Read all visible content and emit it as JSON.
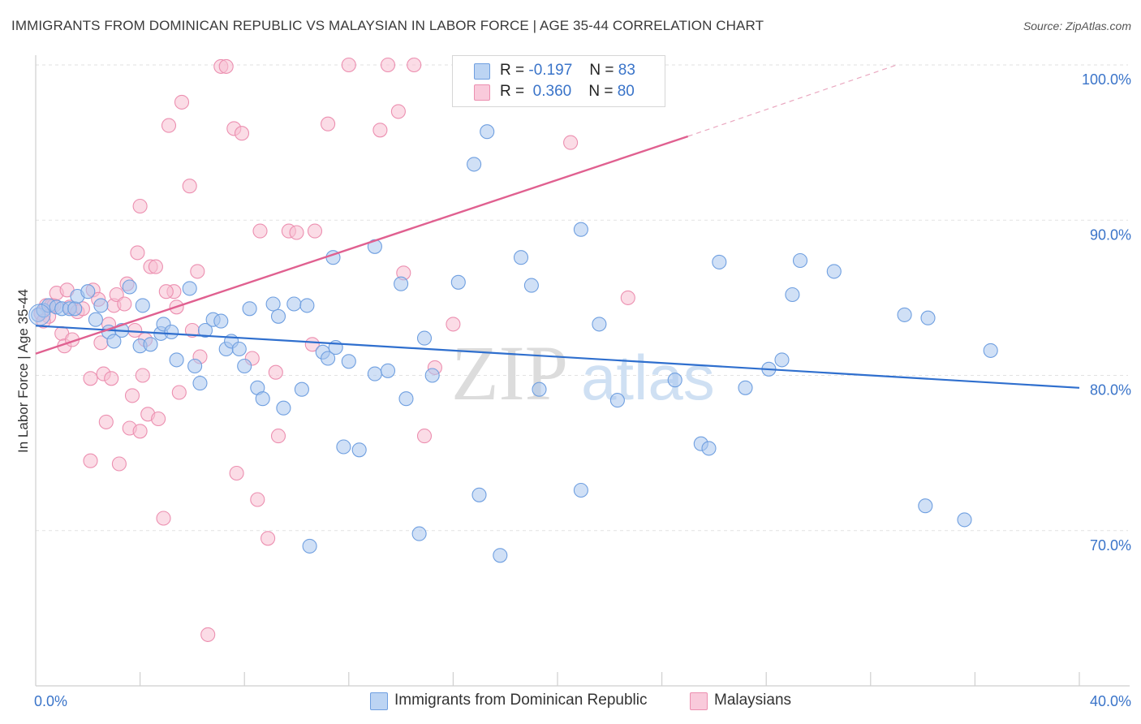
{
  "title": "IMMIGRANTS FROM DOMINICAN REPUBLIC VS MALAYSIAN IN LABOR FORCE | AGE 35-44 CORRELATION CHART",
  "source": "Source: ZipAtlas.com",
  "watermark": {
    "zip": "ZIP",
    "atlas": "atlas"
  },
  "colors": {
    "blue_fill": "#a9c7ef",
    "blue_stroke": "#6f9fe0",
    "blue_line": "#2f6fce",
    "pink_fill": "#f7bfd2",
    "pink_stroke": "#ec8fb0",
    "pink_line": "#e06090",
    "axis_label": "#3a74c9",
    "grid": "#e2e2e2"
  },
  "legend_top": [
    {
      "r_label": "R =",
      "r": "-0.197",
      "n_label": "N =",
      "n": "83",
      "color": "blue"
    },
    {
      "r_label": "R =",
      "r": "0.360",
      "n_label": "N =",
      "n": "80",
      "color": "pink"
    }
  ],
  "legend_bottom": [
    {
      "label": "Immigrants from Dominican Republic",
      "color": "blue"
    },
    {
      "label": "Malaysians",
      "color": "pink"
    }
  ],
  "chart_data": {
    "type": "scatter",
    "title": "IMMIGRANTS FROM DOMINICAN REPUBLIC VS MALAYSIAN IN LABOR FORCE | AGE 35-44 CORRELATION CHART",
    "xlabel": "",
    "ylabel": "In Labor Force | Age 35-44",
    "xlim": [
      0,
      40
    ],
    "ylim": [
      60,
      100
    ],
    "x_tick_labels": [
      {
        "value": 0,
        "label": "0.0%"
      },
      {
        "value": 40,
        "label": "40.0%"
      }
    ],
    "y_tick_labels": [
      {
        "value": 100,
        "label": "100.0%"
      },
      {
        "value": 90,
        "label": "90.0%"
      },
      {
        "value": 80,
        "label": "80.0%"
      },
      {
        "value": 70,
        "label": "70.0%"
      }
    ],
    "x_minor_ticks": [
      4,
      8,
      12,
      16,
      20,
      24,
      28,
      32,
      36,
      40
    ],
    "grid": true,
    "series": [
      {
        "name": "Immigrants from Dominican Republic",
        "color": "blue",
        "trend": {
          "x0": 0,
          "y0": 83.2,
          "x1": 40,
          "y1": 79.2
        },
        "points": [
          [
            0.1,
            83.9
          ],
          [
            0.3,
            84.2
          ],
          [
            0.5,
            84.5
          ],
          [
            0.8,
            84.4
          ],
          [
            1.0,
            84.3
          ],
          [
            1.3,
            84.3
          ],
          [
            1.5,
            84.3
          ],
          [
            1.6,
            85.1
          ],
          [
            2.0,
            85.4
          ],
          [
            2.3,
            83.6
          ],
          [
            2.5,
            84.5
          ],
          [
            2.8,
            82.8
          ],
          [
            3.0,
            82.2
          ],
          [
            3.3,
            82.9
          ],
          [
            3.6,
            85.7
          ],
          [
            4.0,
            81.9
          ],
          [
            4.1,
            84.5
          ],
          [
            4.4,
            82.0
          ],
          [
            4.8,
            82.7
          ],
          [
            4.9,
            83.3
          ],
          [
            5.2,
            82.8
          ],
          [
            5.4,
            81.0
          ],
          [
            5.9,
            85.6
          ],
          [
            6.1,
            80.6
          ],
          [
            6.3,
            79.5
          ],
          [
            6.5,
            82.9
          ],
          [
            6.8,
            83.6
          ],
          [
            7.1,
            83.5
          ],
          [
            7.3,
            81.7
          ],
          [
            7.5,
            82.2
          ],
          [
            7.8,
            81.7
          ],
          [
            8.0,
            80.6
          ],
          [
            8.2,
            84.3
          ],
          [
            8.5,
            79.2
          ],
          [
            8.7,
            78.5
          ],
          [
            9.1,
            84.6
          ],
          [
            9.3,
            83.8
          ],
          [
            9.5,
            77.9
          ],
          [
            9.9,
            84.6
          ],
          [
            10.2,
            79.1
          ],
          [
            10.4,
            84.5
          ],
          [
            10.5,
            69.0
          ],
          [
            11.0,
            81.5
          ],
          [
            11.2,
            81.1
          ],
          [
            11.4,
            87.6
          ],
          [
            11.5,
            81.8
          ],
          [
            11.8,
            75.4
          ],
          [
            12.0,
            80.9
          ],
          [
            12.4,
            75.2
          ],
          [
            13.0,
            88.3
          ],
          [
            13.0,
            80.1
          ],
          [
            13.5,
            80.3
          ],
          [
            14.0,
            85.9
          ],
          [
            14.2,
            78.5
          ],
          [
            14.7,
            69.8
          ],
          [
            14.9,
            82.4
          ],
          [
            15.2,
            80.0
          ],
          [
            16.2,
            86.0
          ],
          [
            16.8,
            93.6
          ],
          [
            17.0,
            72.3
          ],
          [
            17.3,
            95.7
          ],
          [
            17.8,
            68.4
          ],
          [
            18.6,
            87.6
          ],
          [
            19.0,
            85.8
          ],
          [
            19.3,
            79.1
          ],
          [
            20.9,
            72.6
          ],
          [
            20.9,
            89.4
          ],
          [
            21.6,
            83.3
          ],
          [
            22.3,
            78.4
          ],
          [
            24.5,
            79.7
          ],
          [
            25.5,
            75.6
          ],
          [
            25.8,
            75.3
          ],
          [
            26.2,
            87.3
          ],
          [
            27.2,
            79.2
          ],
          [
            28.1,
            80.4
          ],
          [
            28.6,
            81.0
          ],
          [
            29.0,
            85.2
          ],
          [
            29.3,
            87.4
          ],
          [
            30.6,
            86.7
          ],
          [
            33.3,
            83.9
          ],
          [
            34.1,
            71.6
          ],
          [
            34.2,
            83.7
          ],
          [
            35.6,
            70.7
          ],
          [
            36.6,
            81.6
          ]
        ]
      },
      {
        "name": "Malaysians",
        "color": "pink",
        "trend": {
          "x0": 0,
          "y0": 81.4,
          "x1": 25.0,
          "y1": 95.4,
          "dashed_to": {
            "x": 33.0,
            "y": 100.0
          }
        },
        "points": [
          [
            0.2,
            84.0
          ],
          [
            0.4,
            84.5
          ],
          [
            0.6,
            84.5
          ],
          [
            0.7,
            84.5
          ],
          [
            0.8,
            85.3
          ],
          [
            1.0,
            82.7
          ],
          [
            1.1,
            81.9
          ],
          [
            1.3,
            84.4
          ],
          [
            1.4,
            82.3
          ],
          [
            1.6,
            84.1
          ],
          [
            1.8,
            84.3
          ],
          [
            2.1,
            79.8
          ],
          [
            2.1,
            74.5
          ],
          [
            2.2,
            85.5
          ],
          [
            2.4,
            84.9
          ],
          [
            2.5,
            82.1
          ],
          [
            2.6,
            80.1
          ],
          [
            2.7,
            77.0
          ],
          [
            2.8,
            83.3
          ],
          [
            2.9,
            79.8
          ],
          [
            3.0,
            84.5
          ],
          [
            3.1,
            85.2
          ],
          [
            3.2,
            74.3
          ],
          [
            3.4,
            84.6
          ],
          [
            3.6,
            76.6
          ],
          [
            3.7,
            78.7
          ],
          [
            3.8,
            82.9
          ],
          [
            3.9,
            87.9
          ],
          [
            4.0,
            76.4
          ],
          [
            4.0,
            90.9
          ],
          [
            4.1,
            80.0
          ],
          [
            4.2,
            82.3
          ],
          [
            4.3,
            77.5
          ],
          [
            4.4,
            87.0
          ],
          [
            4.6,
            87.0
          ],
          [
            4.7,
            77.2
          ],
          [
            4.9,
            70.8
          ],
          [
            5.1,
            96.1
          ],
          [
            5.3,
            85.4
          ],
          [
            5.4,
            84.4
          ],
          [
            5.5,
            78.9
          ],
          [
            5.6,
            97.6
          ],
          [
            5.9,
            92.2
          ],
          [
            6.0,
            82.9
          ],
          [
            6.2,
            86.7
          ],
          [
            6.3,
            81.2
          ],
          [
            6.6,
            63.3
          ],
          [
            7.1,
            99.9
          ],
          [
            7.3,
            99.9
          ],
          [
            7.6,
            95.9
          ],
          [
            7.7,
            73.7
          ],
          [
            7.9,
            95.6
          ],
          [
            8.3,
            81.1
          ],
          [
            8.5,
            72.0
          ],
          [
            8.6,
            89.3
          ],
          [
            8.9,
            69.5
          ],
          [
            9.2,
            80.2
          ],
          [
            9.3,
            76.1
          ],
          [
            9.7,
            89.3
          ],
          [
            10.0,
            89.2
          ],
          [
            10.6,
            82.0
          ],
          [
            10.7,
            89.3
          ],
          [
            11.2,
            96.2
          ],
          [
            12.0,
            100.0
          ],
          [
            13.2,
            95.8
          ],
          [
            13.5,
            100.0
          ],
          [
            13.9,
            97.0
          ],
          [
            14.1,
            86.6
          ],
          [
            14.5,
            100.0
          ],
          [
            14.9,
            76.1
          ],
          [
            15.3,
            80.5
          ],
          [
            16.0,
            83.3
          ],
          [
            16.6,
            100.0
          ],
          [
            20.5,
            95.0
          ],
          [
            22.7,
            85.0
          ],
          [
            0.5,
            83.8
          ],
          [
            1.2,
            85.5
          ],
          [
            3.5,
            85.9
          ],
          [
            5.0,
            85.4
          ],
          [
            0.3,
            83.5
          ]
        ]
      }
    ]
  }
}
